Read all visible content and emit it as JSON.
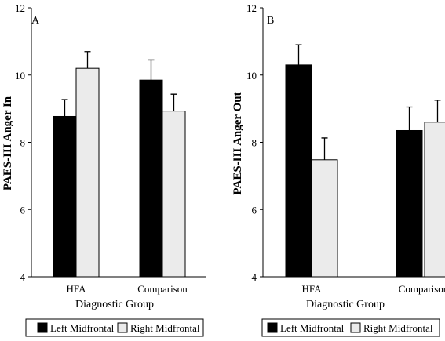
{
  "chart_data": [
    {
      "type": "bar",
      "panel_label": "A",
      "categories": [
        "HFA",
        "Comparison"
      ],
      "series": [
        {
          "name": "Left Midfrontal",
          "values": [
            8.77,
            9.85
          ],
          "errors": [
            0.5,
            0.6
          ]
        },
        {
          "name": "Right Midfrontal",
          "values": [
            10.2,
            8.93
          ],
          "errors": [
            0.5,
            0.5
          ]
        }
      ],
      "xlabel": "Diagnostic Group",
      "ylabel": "PAES-III Anger In",
      "ylim": [
        4,
        12
      ],
      "yticks": [
        "4",
        "6",
        "8",
        "10",
        "12"
      ],
      "legend_position": "bottom"
    },
    {
      "type": "bar",
      "panel_label": "B",
      "categories": [
        "HFA",
        "Comparison"
      ],
      "series": [
        {
          "name": "Left Midfrontal",
          "values": [
            10.3,
            8.35
          ],
          "errors": [
            0.6,
            0.7
          ]
        },
        {
          "name": "Right Midfrontal",
          "values": [
            7.48,
            8.6
          ],
          "errors": [
            0.65,
            0.65
          ]
        }
      ],
      "xlabel": "Diagnostic Group",
      "ylabel": "PAES-III Anger Out",
      "ylim": [
        4,
        12
      ],
      "yticks": [
        "4",
        "6",
        "8",
        "10",
        "12"
      ],
      "legend_position": "bottom"
    }
  ],
  "colors": {
    "left": "#000000",
    "right": "#ebebeb",
    "stroke": "#000000"
  }
}
